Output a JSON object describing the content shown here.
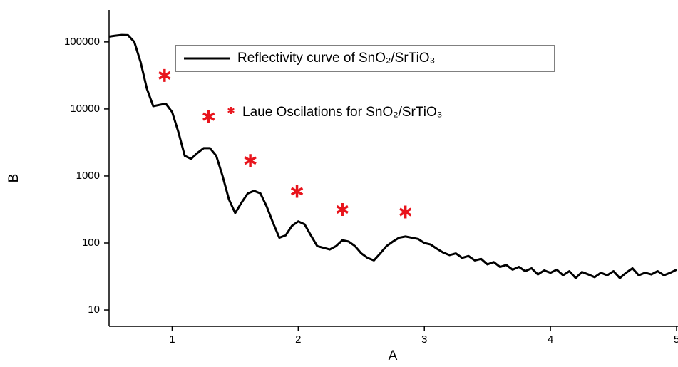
{
  "chart_data": {
    "type": "line",
    "x_label": "A",
    "y_label": "B",
    "log_y": true,
    "xlim": [
      0.5,
      5
    ],
    "ylim": [
      5.7,
      300000
    ],
    "xticks": [
      1,
      2,
      3,
      4,
      5
    ],
    "yticks": [
      10,
      100,
      1000,
      10000,
      100000
    ],
    "x": [
      0.5,
      0.55,
      0.6,
      0.65,
      0.7,
      0.75,
      0.8,
      0.85,
      0.9,
      0.95,
      1.0,
      1.05,
      1.1,
      1.15,
      1.2,
      1.25,
      1.3,
      1.35,
      1.4,
      1.45,
      1.5,
      1.55,
      1.6,
      1.65,
      1.7,
      1.75,
      1.8,
      1.85,
      1.9,
      1.95,
      2.0,
      2.05,
      2.1,
      2.15,
      2.2,
      2.25,
      2.3,
      2.35,
      2.4,
      2.45,
      2.5,
      2.55,
      2.6,
      2.65,
      2.7,
      2.75,
      2.8,
      2.85,
      2.9,
      2.95,
      3.0,
      3.05,
      3.1,
      3.15,
      3.2,
      3.25,
      3.3,
      3.35,
      3.4,
      3.45,
      3.5,
      3.55,
      3.6,
      3.65,
      3.7,
      3.75,
      3.8,
      3.85,
      3.9,
      3.95,
      4.0,
      4.05,
      4.1,
      4.15,
      4.2,
      4.25,
      4.3,
      4.35,
      4.4,
      4.45,
      4.5,
      4.55,
      4.6,
      4.65,
      4.7,
      4.75,
      4.8,
      4.85,
      4.9,
      4.95,
      5.0
    ],
    "series": [
      {
        "name": "Reflectivity curve of  SnO₂/SrTiO₃",
        "color": "#000000",
        "values": [
          120000,
          124000,
          127000,
          126000,
          100000,
          50000,
          20000,
          11000,
          11500,
          12000,
          9000,
          4500,
          2000,
          1800,
          2200,
          2600,
          2600,
          2000,
          1000,
          450,
          280,
          400,
          550,
          600,
          550,
          350,
          200,
          120,
          130,
          180,
          210,
          190,
          130,
          90,
          85,
          80,
          90,
          110,
          105,
          90,
          70,
          60,
          55,
          70,
          90,
          105,
          120,
          125,
          120,
          115,
          100,
          95,
          82,
          72,
          66,
          70,
          60,
          64,
          55,
          58,
          48,
          52,
          44,
          47,
          40,
          44,
          38,
          42,
          34,
          39,
          36,
          40,
          33,
          38,
          30,
          37,
          34,
          31,
          36,
          33,
          38,
          30,
          36,
          42,
          33,
          36,
          34,
          38,
          33,
          36,
          40
        ]
      },
      {
        "name": "Laue Oscilations for SnO₂/SrTiO₃",
        "color": "#e8141c",
        "marker": "asterisk",
        "x": [
          0.94,
          1.29,
          1.62,
          1.99,
          2.35,
          2.85
        ],
        "values": [
          31600,
          7700,
          1700,
          590,
          316,
          290
        ]
      }
    ]
  }
}
